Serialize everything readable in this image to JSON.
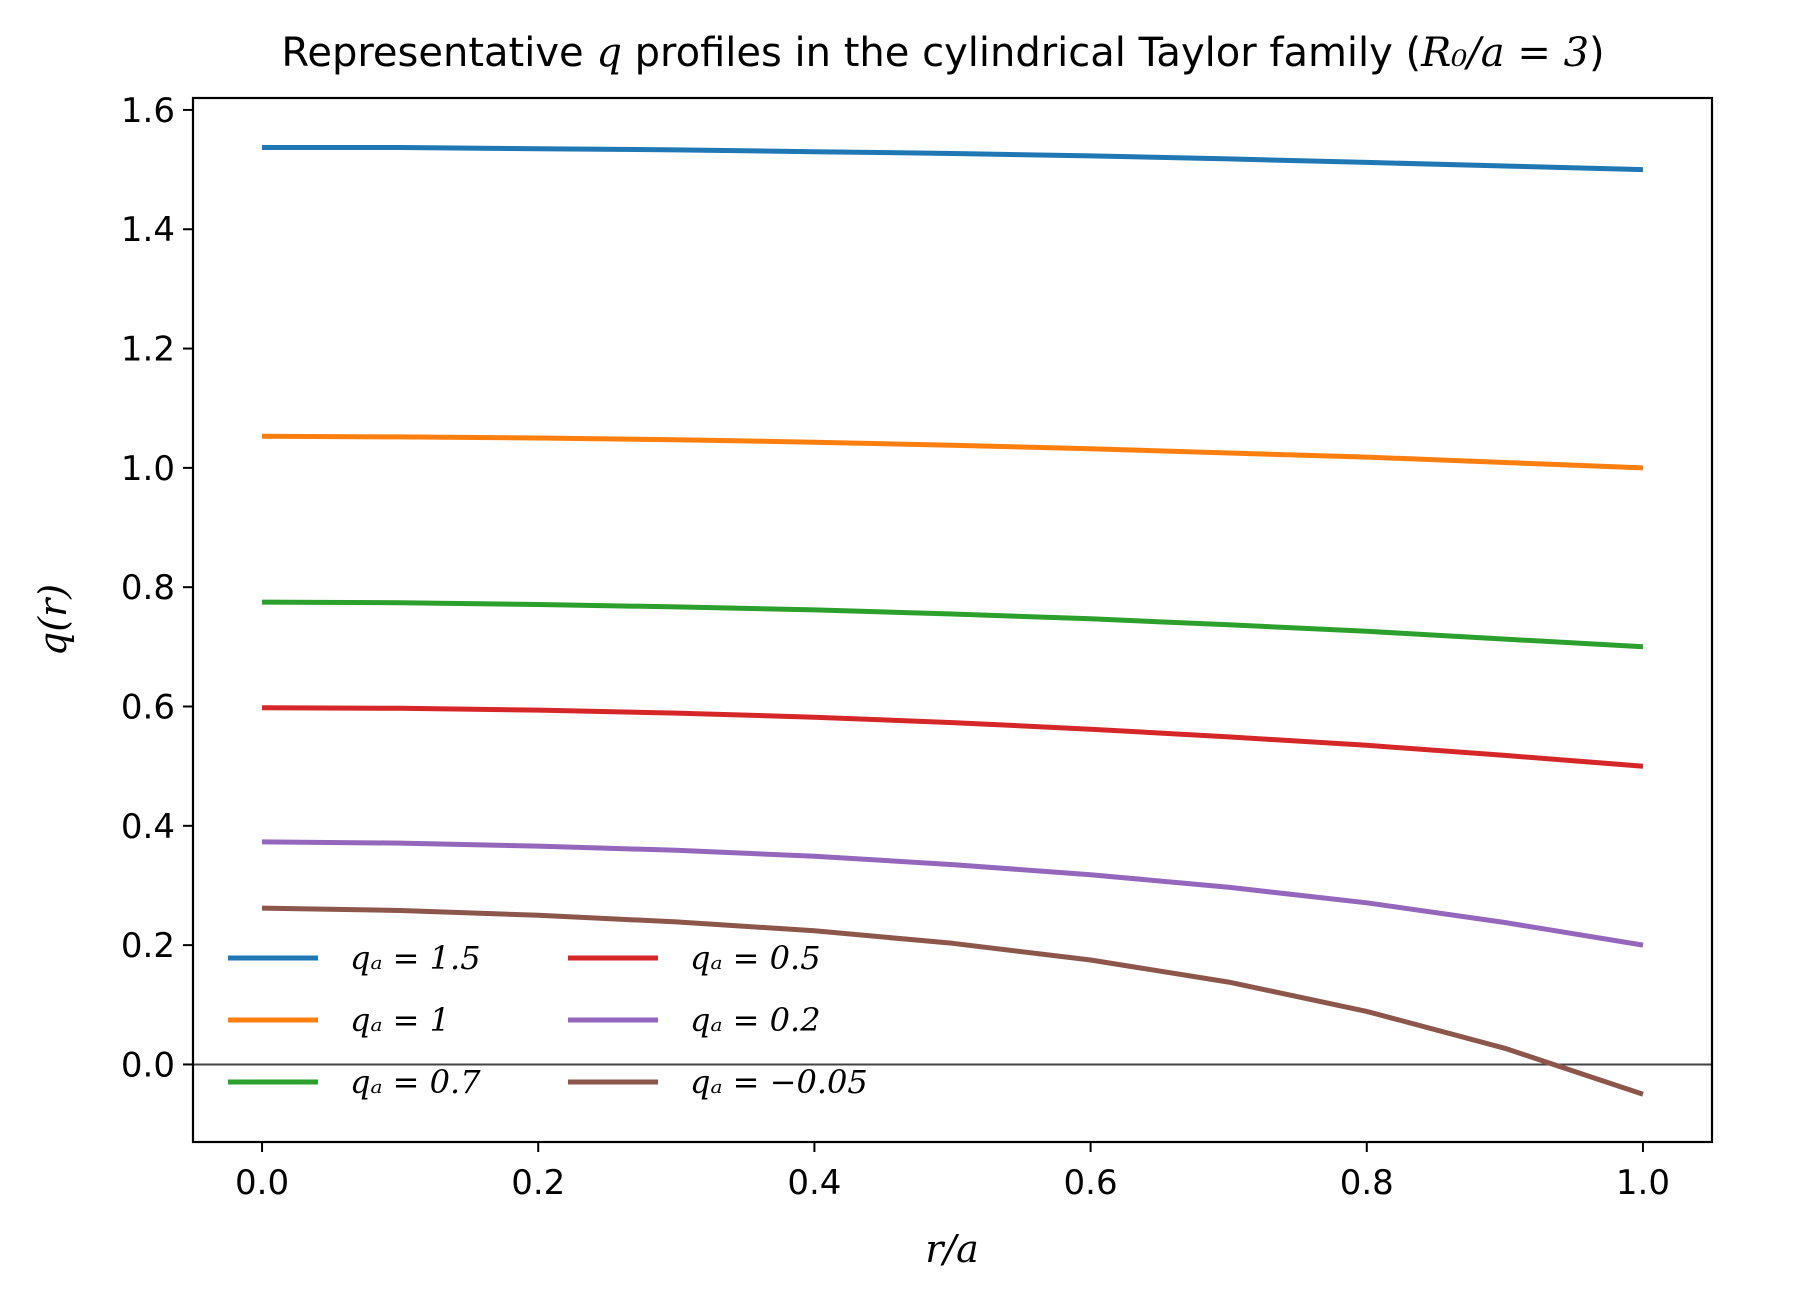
{
  "chart_data": {
    "type": "line",
    "title": "Representative q profiles in the cylindrical Taylor family (R₀/a = 3)",
    "title_parts": [
      "Representative ",
      "q",
      " profiles in the cylindrical Taylor family (",
      "R₀/a = 3",
      ")"
    ],
    "xlabel": "r/a",
    "ylabel": "q(r)",
    "xlim": [
      -0.05,
      1.05
    ],
    "ylim": [
      -0.13,
      1.62
    ],
    "xticks": [
      0.0,
      0.2,
      0.4,
      0.6,
      0.8,
      1.0
    ],
    "xtick_labels": [
      "0.0",
      "0.2",
      "0.4",
      "0.6",
      "0.8",
      "1.0"
    ],
    "yticks": [
      0.0,
      0.2,
      0.4,
      0.6,
      0.8,
      1.0,
      1.2,
      1.4,
      1.6
    ],
    "ytick_labels": [
      "0.0",
      "0.2",
      "0.4",
      "0.6",
      "0.8",
      "1.0",
      "1.2",
      "1.4",
      "1.6"
    ],
    "grid": false,
    "reference_line_y": 0.0,
    "legend_placement": "lower-left",
    "legend_columns": 2,
    "x": [
      0.0,
      0.1,
      0.2,
      0.3,
      0.4,
      0.5,
      0.6,
      0.7,
      0.8,
      0.9,
      1.0
    ],
    "series": [
      {
        "name": "qₐ = 1.5",
        "color": "#1f77b4",
        "values": [
          1.537,
          1.537,
          1.535,
          1.533,
          1.53,
          1.527,
          1.523,
          1.518,
          1.512,
          1.506,
          1.5
        ]
      },
      {
        "name": "qₐ = 1",
        "color": "#ff7f0e",
        "values": [
          1.053,
          1.052,
          1.05,
          1.047,
          1.043,
          1.038,
          1.032,
          1.025,
          1.018,
          1.009,
          1.0
        ]
      },
      {
        "name": "qₐ = 0.7",
        "color": "#2ca02c",
        "values": [
          0.775,
          0.774,
          0.771,
          0.767,
          0.762,
          0.755,
          0.747,
          0.737,
          0.726,
          0.713,
          0.7
        ]
      },
      {
        "name": "qₐ = 0.5",
        "color": "#d62728",
        "values": [
          0.598,
          0.597,
          0.594,
          0.589,
          0.582,
          0.573,
          0.562,
          0.549,
          0.535,
          0.518,
          0.5
        ]
      },
      {
        "name": "qₐ = 0.2",
        "color": "#9467bd",
        "values": [
          0.373,
          0.371,
          0.366,
          0.359,
          0.349,
          0.335,
          0.318,
          0.297,
          0.271,
          0.238,
          0.2
        ]
      },
      {
        "name": "qₐ = −0.05",
        "color": "#8c564b",
        "values": [
          0.262,
          0.258,
          0.25,
          0.239,
          0.224,
          0.203,
          0.175,
          0.138,
          0.089,
          0.027,
          -0.05
        ]
      }
    ]
  }
}
